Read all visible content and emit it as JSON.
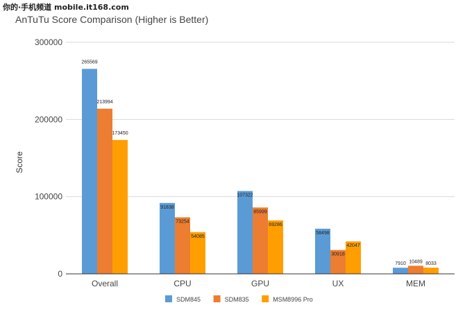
{
  "watermark": "你的·手机频道 mobile.it168.com",
  "chart_data": {
    "type": "bar",
    "title": "AnTuTu Score Comparison (Higher is Better)",
    "xlabel": "",
    "ylabel": "Score",
    "ylim": [
      0,
      300000
    ],
    "yticks": [
      0,
      100000,
      200000,
      300000
    ],
    "ytick_labels": [
      "0",
      "100000",
      "200000",
      "300000"
    ],
    "grid": true,
    "legend_position": "bottom",
    "categories": [
      "Overall",
      "CPU",
      "GPU",
      "UX",
      "MEM"
    ],
    "series": [
      {
        "name": "SDM845",
        "color": "#5b9bd5",
        "values": [
          265569,
          91838,
          107322,
          58498,
          7910
        ],
        "labels": [
          "265569",
          "91838",
          "107322",
          "58498",
          "7910"
        ]
      },
      {
        "name": "SDM835",
        "color": "#ed7d31",
        "values": [
          213994,
          73254,
          85999,
          30918,
          10489
        ],
        "labels": [
          "213994",
          "73254",
          "85999",
          "30918",
          "10489"
        ]
      },
      {
        "name": "MSM8996 Pro",
        "color": "#ff9e01",
        "values": [
          173450,
          54085,
          69286,
          42047,
          8033
        ],
        "labels": [
          "173450",
          "54085",
          "69286",
          "42047",
          "8033"
        ]
      }
    ]
  }
}
